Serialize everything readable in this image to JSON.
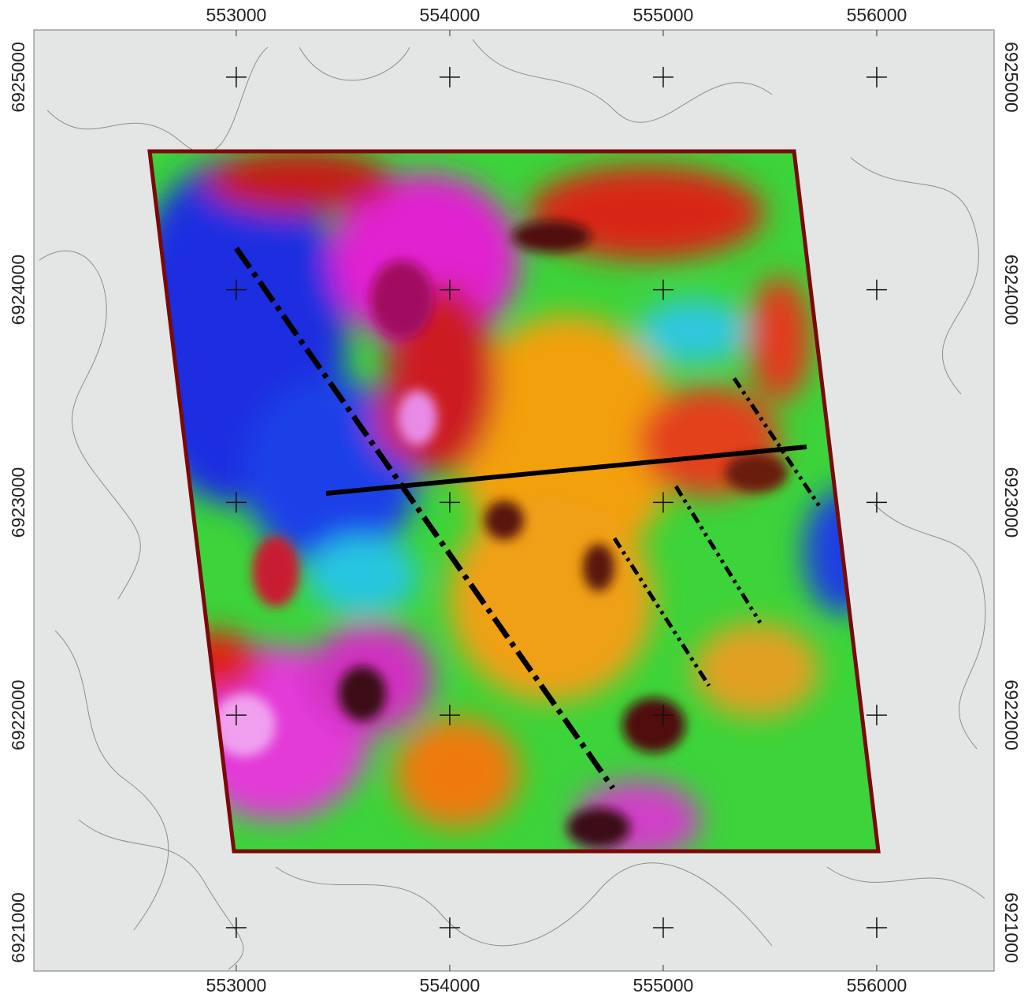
{
  "chart_data": {
    "type": "map",
    "xlim": [
      552052,
      556550
    ],
    "ylim": [
      6920796,
      6925222
    ],
    "xticks": [
      553000,
      554000,
      555000,
      556000
    ],
    "yticks": [
      6921000,
      6922000,
      6923000,
      6924000,
      6925000
    ]
  }
}
